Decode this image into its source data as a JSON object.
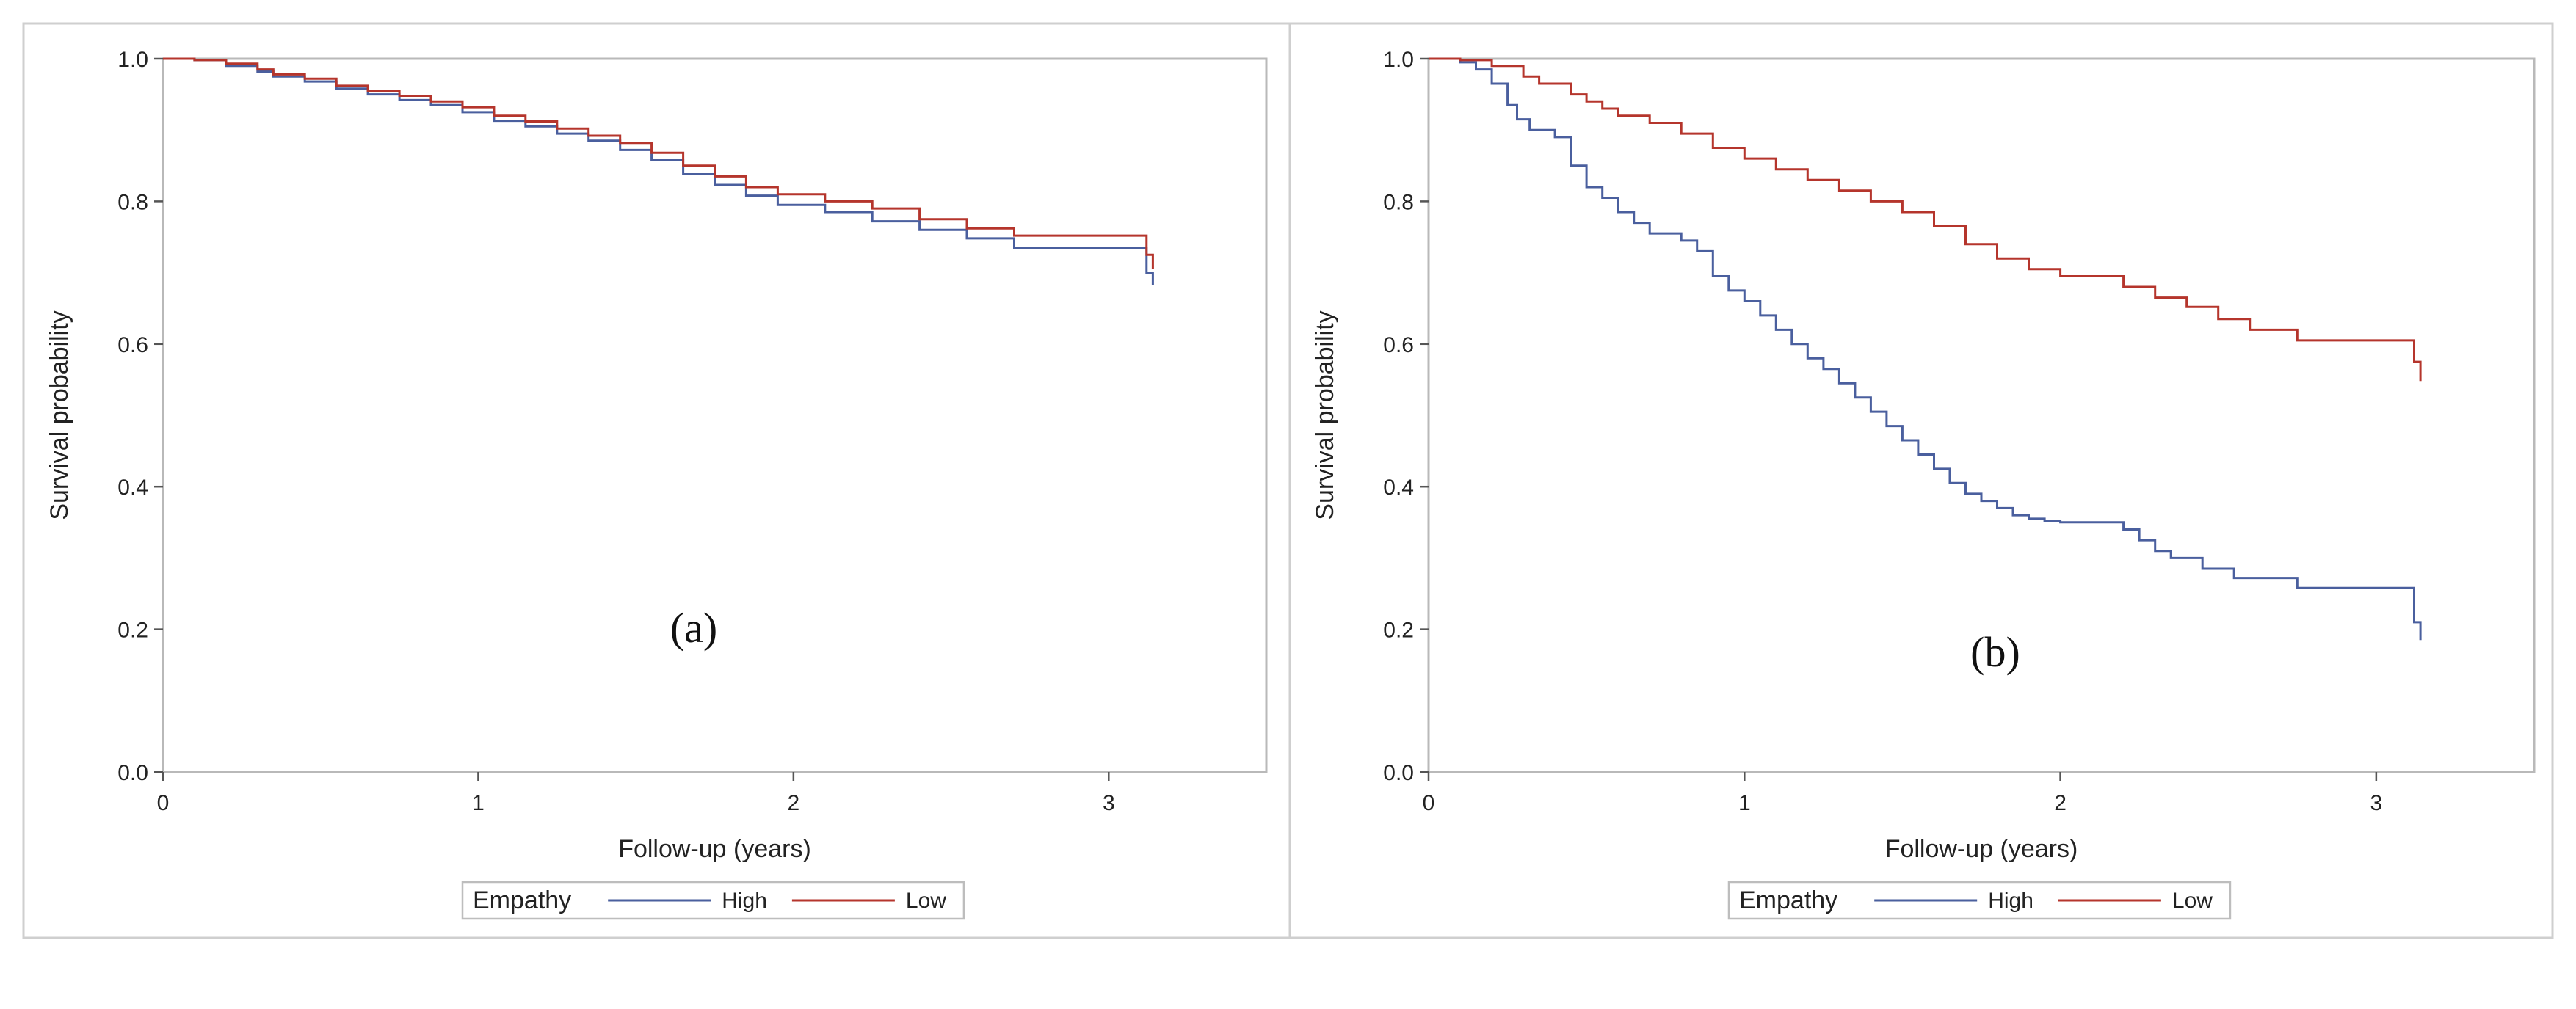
{
  "chart_data": [
    {
      "type": "line",
      "step": true,
      "panel_label": "(a)",
      "xlabel": "Follow-up (years)",
      "ylabel": "Survival probability",
      "xlim": [
        0,
        3.5
      ],
      "ylim": [
        0,
        1.0
      ],
      "x_ticks": [
        0,
        1,
        2,
        3
      ],
      "x_tick_labels": [
        "0",
        "1",
        "2",
        "3"
      ],
      "y_ticks": [
        0,
        0.2,
        0.4,
        0.6,
        0.8,
        1.0
      ],
      "y_tick_labels": [
        "0.0",
        "0.2",
        "0.4",
        "0.6",
        "0.8",
        "1.0"
      ],
      "legend": {
        "title": "Empathy",
        "position": "bottom-center"
      },
      "series": [
        {
          "name": "High",
          "color": "#4a5f9e",
          "x": [
            0,
            0.1,
            0.2,
            0.3,
            0.35,
            0.45,
            0.55,
            0.65,
            0.75,
            0.85,
            0.95,
            1.05,
            1.15,
            1.25,
            1.35,
            1.45,
            1.55,
            1.65,
            1.75,
            1.85,
            1.95,
            2.1,
            2.25,
            2.4,
            2.55,
            2.7,
            3.12,
            3.12,
            3.14,
            3.14
          ],
          "y": [
            1.0,
            0.998,
            0.99,
            0.982,
            0.975,
            0.968,
            0.958,
            0.95,
            0.942,
            0.935,
            0.925,
            0.913,
            0.905,
            0.895,
            0.885,
            0.872,
            0.858,
            0.838,
            0.823,
            0.808,
            0.795,
            0.785,
            0.772,
            0.76,
            0.748,
            0.735,
            0.73,
            0.7,
            0.7,
            0.683
          ]
        },
        {
          "name": "Low",
          "color": "#b5352c",
          "x": [
            0,
            0.1,
            0.2,
            0.3,
            0.35,
            0.45,
            0.55,
            0.65,
            0.75,
            0.85,
            0.95,
            1.05,
            1.15,
            1.25,
            1.35,
            1.45,
            1.55,
            1.65,
            1.75,
            1.85,
            1.95,
            2.1,
            2.25,
            2.4,
            2.55,
            2.7,
            3.12,
            3.12,
            3.14,
            3.14
          ],
          "y": [
            1.0,
            0.998,
            0.993,
            0.985,
            0.978,
            0.972,
            0.962,
            0.955,
            0.948,
            0.94,
            0.932,
            0.92,
            0.912,
            0.902,
            0.892,
            0.882,
            0.868,
            0.85,
            0.835,
            0.82,
            0.81,
            0.8,
            0.79,
            0.775,
            0.762,
            0.752,
            0.745,
            0.725,
            0.725,
            0.705
          ]
        }
      ]
    },
    {
      "type": "line",
      "step": true,
      "panel_label": "(b)",
      "xlabel": "Follow-up (years)",
      "ylabel": "Survival probability",
      "xlim": [
        0,
        3.5
      ],
      "ylim": [
        0,
        1.0
      ],
      "x_ticks": [
        0,
        1,
        2,
        3
      ],
      "x_tick_labels": [
        "0",
        "1",
        "2",
        "3"
      ],
      "y_ticks": [
        0,
        0.2,
        0.4,
        0.6,
        0.8,
        1.0
      ],
      "y_tick_labels": [
        "0.0",
        "0.2",
        "0.4",
        "0.6",
        "0.8",
        "1.0"
      ],
      "legend": {
        "title": "Empathy",
        "position": "bottom-center"
      },
      "series": [
        {
          "name": "High",
          "color": "#4a5f9e",
          "x": [
            0,
            0.1,
            0.15,
            0.2,
            0.25,
            0.28,
            0.32,
            0.4,
            0.45,
            0.5,
            0.55,
            0.6,
            0.65,
            0.7,
            0.8,
            0.85,
            0.9,
            0.95,
            1.0,
            1.05,
            1.1,
            1.15,
            1.2,
            1.25,
            1.3,
            1.35,
            1.4,
            1.45,
            1.5,
            1.55,
            1.6,
            1.65,
            1.7,
            1.75,
            1.8,
            1.85,
            1.9,
            1.95,
            2.0,
            2.2,
            2.25,
            2.3,
            2.35,
            2.45,
            2.55,
            2.75,
            3.12,
            3.12,
            3.14,
            3.14
          ],
          "y": [
            1.0,
            0.995,
            0.985,
            0.965,
            0.935,
            0.915,
            0.9,
            0.89,
            0.85,
            0.82,
            0.805,
            0.785,
            0.77,
            0.755,
            0.745,
            0.73,
            0.695,
            0.675,
            0.66,
            0.64,
            0.62,
            0.6,
            0.58,
            0.565,
            0.545,
            0.525,
            0.505,
            0.485,
            0.465,
            0.445,
            0.425,
            0.405,
            0.39,
            0.38,
            0.37,
            0.36,
            0.355,
            0.352,
            0.35,
            0.34,
            0.325,
            0.31,
            0.3,
            0.285,
            0.272,
            0.258,
            0.243,
            0.21,
            0.21,
            0.185
          ]
        },
        {
          "name": "Low",
          "color": "#b5352c",
          "x": [
            0,
            0.1,
            0.2,
            0.3,
            0.35,
            0.45,
            0.5,
            0.55,
            0.6,
            0.7,
            0.8,
            0.9,
            1.0,
            1.1,
            1.2,
            1.3,
            1.4,
            1.5,
            1.6,
            1.7,
            1.8,
            1.9,
            2.0,
            2.2,
            2.3,
            2.4,
            2.5,
            2.6,
            2.75,
            3.12,
            3.12,
            3.14,
            3.14
          ],
          "y": [
            1.0,
            0.998,
            0.99,
            0.975,
            0.965,
            0.95,
            0.94,
            0.93,
            0.92,
            0.91,
            0.895,
            0.875,
            0.86,
            0.845,
            0.83,
            0.815,
            0.8,
            0.785,
            0.765,
            0.74,
            0.72,
            0.705,
            0.695,
            0.68,
            0.665,
            0.652,
            0.635,
            0.62,
            0.605,
            0.6,
            0.575,
            0.575,
            0.548
          ]
        }
      ]
    }
  ]
}
